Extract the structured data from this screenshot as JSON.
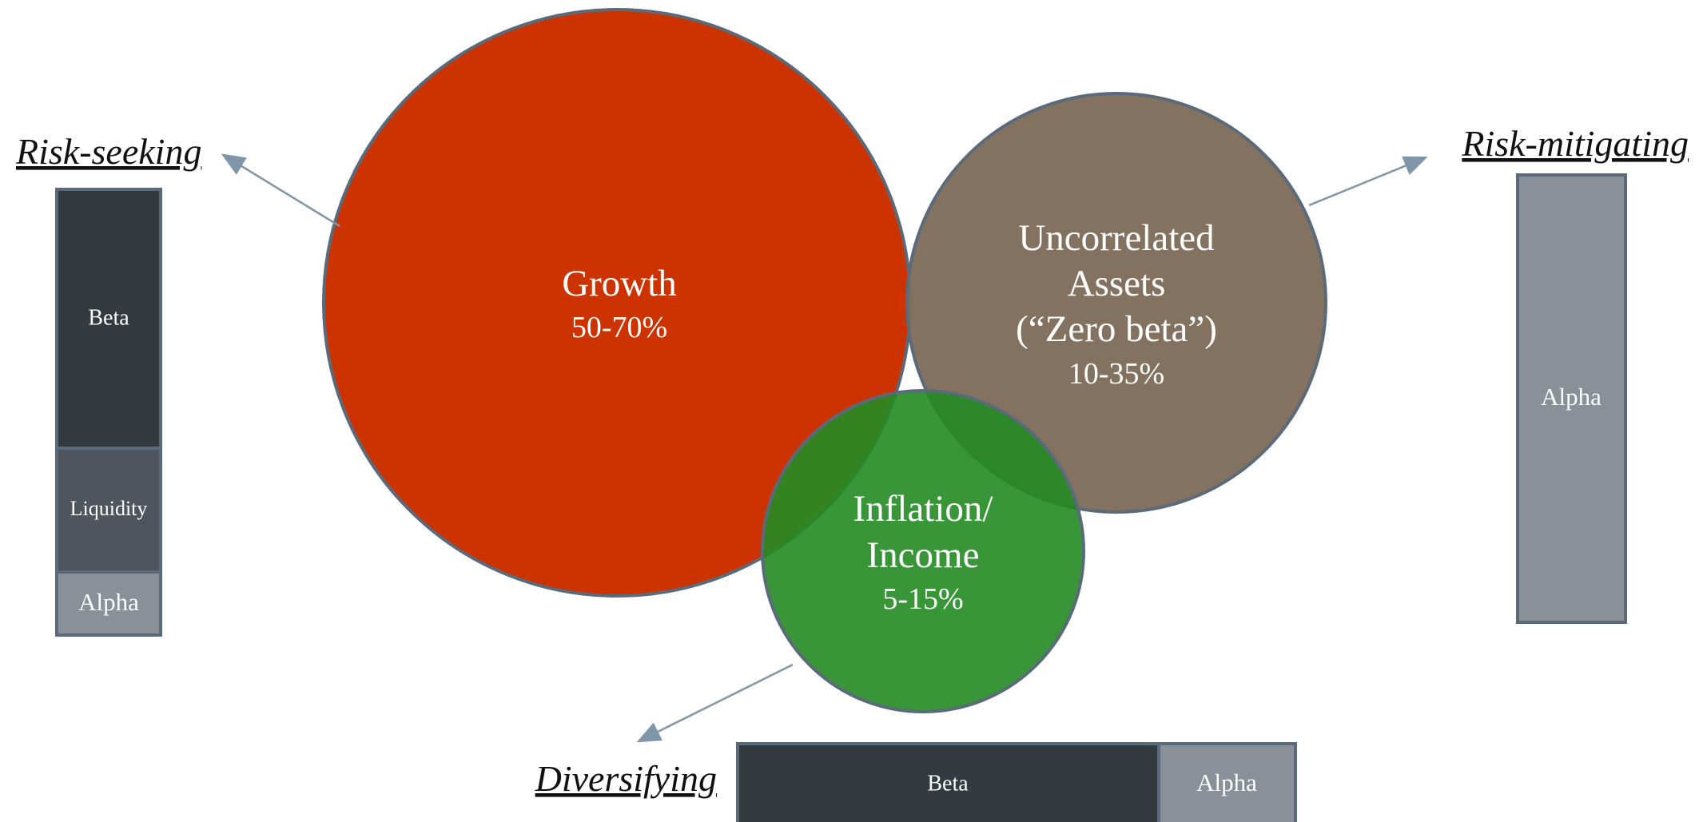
{
  "circles": [
    {
      "label": [
        "Growth"
      ],
      "range": "50-70%"
    },
    {
      "label": [
        "Uncorrelated",
        "Assets",
        "(“Zero beta”)"
      ],
      "range": "10-35%"
    },
    {
      "label": [
        "Inflation/",
        "Income"
      ],
      "range": "5-15%"
    }
  ],
  "risk_seeking": {
    "title": "Risk-seeking",
    "segments": [
      "Beta",
      "Liquidity",
      "Alpha"
    ]
  },
  "risk_mitigating": {
    "title": "Risk-mitigating",
    "segments": [
      "Alpha"
    ]
  },
  "diversifying": {
    "title": "Diversifying",
    "segments": [
      "Beta",
      "Alpha"
    ]
  }
}
